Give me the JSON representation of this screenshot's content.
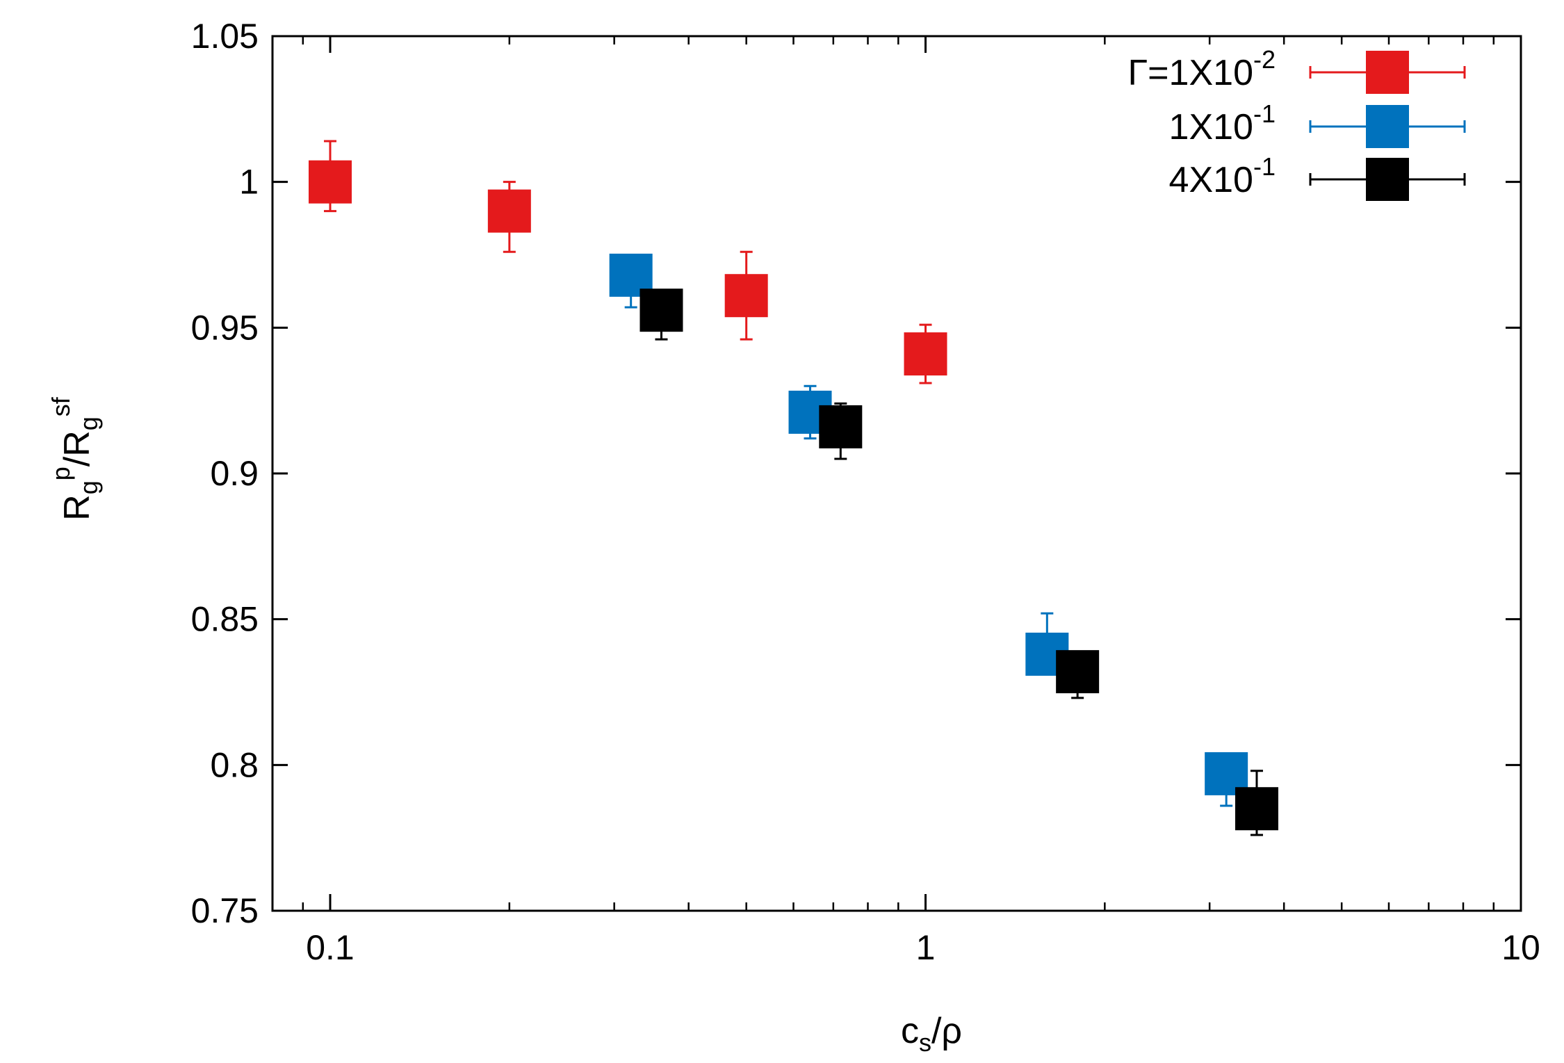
{
  "chart_data": {
    "type": "scatter",
    "xscale": "log",
    "xlim": [
      0.08,
      10
    ],
    "ylim": [
      0.75,
      1.05
    ],
    "xlabel": {
      "main": "c",
      "sub": "s",
      "tail": "/ρ"
    },
    "ylabel": {
      "a": "R",
      "a_sub": "g",
      "a_sup": "p",
      "mid": "/R",
      "b_sub": "g",
      "b_sup": "sf"
    },
    "xticks": [
      {
        "value": 0.1,
        "label": "0.1"
      },
      {
        "value": 1,
        "label": "1"
      },
      {
        "value": 10,
        "label": "10"
      }
    ],
    "yticks": [
      {
        "value": 0.75,
        "label": "0.75"
      },
      {
        "value": 0.8,
        "label": "0.8"
      },
      {
        "value": 0.85,
        "label": "0.85"
      },
      {
        "value": 0.9,
        "label": "0.9"
      },
      {
        "value": 0.95,
        "label": "0.95"
      },
      {
        "value": 1.0,
        "label": "1"
      },
      {
        "value": 1.05,
        "label": "1.05"
      }
    ],
    "legend_position": "top-right",
    "series": [
      {
        "name": {
          "base": "Γ=1X10",
          "sup": "-2"
        },
        "color": "#e41a1c",
        "points": [
          {
            "x": 0.1,
            "y": 1.0,
            "err_low": 0.99,
            "err_high": 1.014
          },
          {
            "x": 0.2,
            "y": 0.99,
            "err_low": 0.976,
            "err_high": 1.0
          },
          {
            "x": 0.5,
            "y": 0.961,
            "err_low": 0.946,
            "err_high": 0.976
          },
          {
            "x": 1.0,
            "y": 0.941,
            "err_low": 0.931,
            "err_high": 0.951
          }
        ]
      },
      {
        "name": {
          "base": "1X10",
          "sup": "-1"
        },
        "color": "#0072bd",
        "points": [
          {
            "x": 0.32,
            "y": 0.968,
            "err_low": 0.957,
            "err_high": 0.968
          },
          {
            "x": 0.64,
            "y": 0.921,
            "err_low": 0.912,
            "err_high": 0.93
          },
          {
            "x": 1.6,
            "y": 0.838,
            "err_low": 0.838,
            "err_high": 0.852
          },
          {
            "x": 3.2,
            "y": 0.797,
            "err_low": 0.786,
            "err_high": 0.797
          }
        ]
      },
      {
        "name": {
          "base": "4X10",
          "sup": "-1"
        },
        "color": "#000000",
        "points": [
          {
            "x": 0.36,
            "y": 0.956,
            "err_low": 0.946,
            "err_high": 0.956
          },
          {
            "x": 0.72,
            "y": 0.916,
            "err_low": 0.905,
            "err_high": 0.924
          },
          {
            "x": 1.8,
            "y": 0.832,
            "err_low": 0.823,
            "err_high": 0.832
          },
          {
            "x": 3.6,
            "y": 0.785,
            "err_low": 0.776,
            "err_high": 0.798
          }
        ]
      }
    ]
  }
}
